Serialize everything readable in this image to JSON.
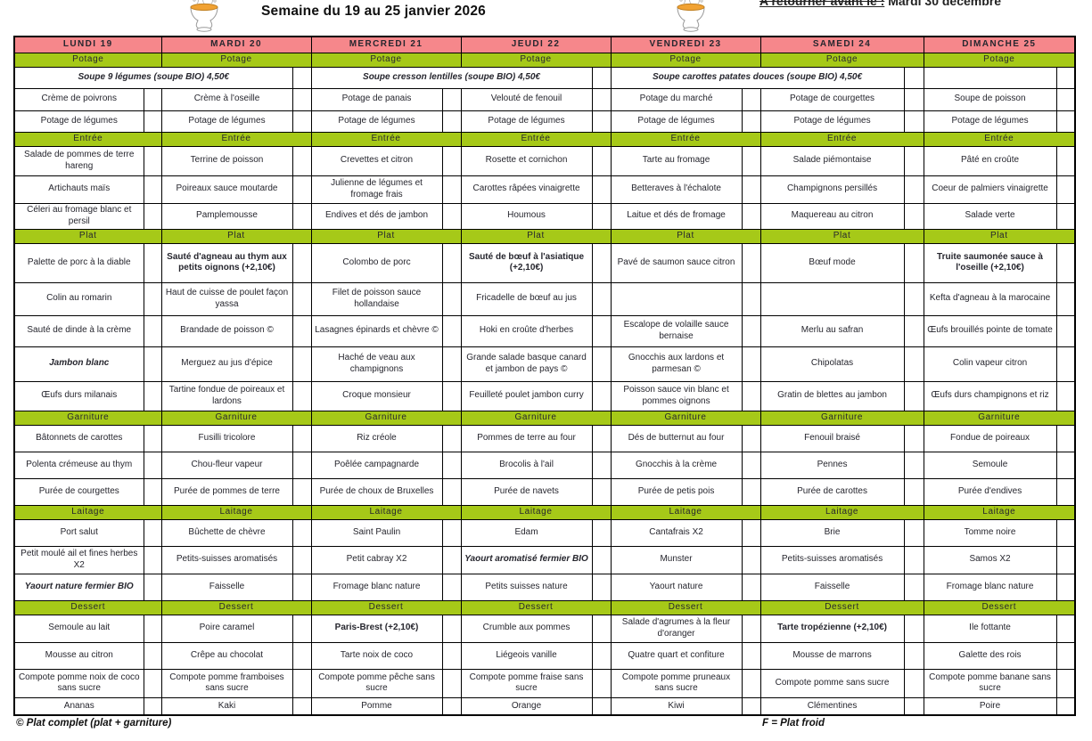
{
  "header": {
    "title": "Semaine du 19 au 25 janvier 2026",
    "return_note": "A retourner avant le :",
    "return_date": "Mardi 30 décembre"
  },
  "colors": {
    "day_header_bg": "#f6878b",
    "section_header_bg": "#a6c918",
    "grid_border": "#000000",
    "soup_icon_fill": "#f1a233"
  },
  "icons": [
    "soup-tureen-icon",
    "soup-tureen-icon"
  ],
  "days": [
    "LUNDI 19",
    "MARDI 20",
    "MERCREDI 21",
    "JEUDI 22",
    "VENDREDI 23",
    "SAMEDI 24",
    "DIMANCHE 25"
  ],
  "soup_bio_row": [
    {
      "label": "Soupe 9 légumes (soupe BIO) 4,50€",
      "days": 2
    },
    {
      "label": "Soupe cresson lentilles (soupe BIO) 4,50€",
      "days": 2
    },
    {
      "label": "Soupe carottes patates douces (soupe BIO) 4,50€",
      "days": 2
    },
    {
      "label": "",
      "days": 1
    }
  ],
  "sections": [
    {
      "key": "potage",
      "label": "Potage",
      "rows": [
        [
          "Crème de poivrons",
          "Crème à l'oseille",
          "Potage de panais",
          "Velouté de fenouil",
          "Potage du marché",
          "Potage de courgettes",
          "Soupe de poisson"
        ],
        [
          "Potage de légumes",
          "Potage de légumes",
          "Potage de légumes",
          "Potage de légumes",
          "Potage de légumes",
          "Potage de légumes",
          "Potage de légumes"
        ]
      ]
    },
    {
      "key": "entree",
      "label": "Entrée",
      "rows": [
        [
          "Salade de pommes de terre hareng",
          "Terrine de poisson",
          "Crevettes et citron",
          "Rosette et cornichon",
          "Tarte au fromage",
          "Salade piémontaise",
          "Pâté en croûte"
        ],
        [
          "Artichauts maïs",
          "Poireaux sauce moutarde",
          "Julienne de légumes et fromage frais",
          "Carottes râpées vinaigrette",
          "Betteraves à l'échalote",
          "Champignons persillés",
          "Coeur de palmiers vinaigrette"
        ],
        [
          "Céleri au fromage blanc et persil",
          "Pamplemousse",
          "Endives et dés de jambon",
          "Houmous",
          "Laitue et dés de fromage",
          "Maquereau au citron",
          "Salade verte"
        ]
      ]
    },
    {
      "key": "plat",
      "label": "Plat",
      "rows": [
        [
          "Palette de porc à la diable",
          {
            "text": "Sauté d'agneau au thym aux petits oignons (+2,10€)",
            "style": "bold"
          },
          "Colombo de porc",
          {
            "text": "Sauté de bœuf à l'asiatique (+2,10€)",
            "style": "bold"
          },
          "Pavé de saumon sauce citron",
          "Bœuf mode",
          {
            "text": "Truite saumonée sauce à l'oseille (+2,10€)",
            "style": "bold"
          }
        ],
        [
          "Colin au romarin",
          "Haut de cuisse de poulet façon yassa",
          "Filet de poisson sauce hollandaise",
          "Fricadelle de bœuf au jus",
          "",
          "",
          "Kefta d'agneau à la marocaine"
        ],
        [
          "Sauté de dinde à la crème",
          "Brandade de poisson ©",
          "Lasagnes épinards et chèvre ©",
          "Hoki en croûte d'herbes",
          "Escalope de volaille sauce bernaise",
          "Merlu au safran",
          "Œufs brouillés pointe de tomate"
        ],
        [
          {
            "text": "Jambon blanc",
            "style": "bold-italic"
          },
          "Merguez au jus d'épice",
          "Haché de veau aux champignons",
          "Grande salade basque canard et jambon de pays ©",
          "Gnocchis aux lardons et parmesan ©",
          "Chipolatas",
          "Colin vapeur citron"
        ],
        [
          "Œufs durs milanais",
          "Tartine fondue de poireaux et lardons",
          "Croque monsieur",
          "Feuilleté poulet jambon curry",
          "Poisson sauce vin blanc et pommes oignons",
          "Gratin de blettes au jambon",
          "Œufs durs champignons et riz"
        ]
      ]
    },
    {
      "key": "garniture",
      "label": "Garniture",
      "rows": [
        [
          "Bâtonnets de carottes",
          "Fusilli tricolore",
          "Riz créole",
          "Pommes de terre au four",
          "Dés de butternut au four",
          "Fenouil braisé",
          "Fondue de poireaux"
        ],
        [
          "Polenta crémeuse au thym",
          "Chou-fleur vapeur",
          "Poêlée campagnarde",
          "Brocolis à l'ail",
          "Gnocchis à la crème",
          "Pennes",
          "Semoule"
        ],
        [
          "Purée de courgettes",
          "Purée de pommes de terre",
          "Purée de choux de Bruxelles",
          "Purée de navets",
          "Purée de petis pois",
          "Purée de carottes",
          "Purée d'endives"
        ]
      ]
    },
    {
      "key": "laitage",
      "label": "Laitage",
      "rows": [
        [
          "Port salut",
          "Bûchette de chèvre",
          "Saint Paulin",
          "Edam",
          "Cantafrais X2",
          "Brie",
          "Tomme noire"
        ],
        [
          "Petit moulé ail et fines herbes X2",
          "Petits-suisses aromatisés",
          "Petit cabray X2",
          {
            "text": "Yaourt aromatisé fermier BIO",
            "style": "bold-italic"
          },
          "Munster",
          "Petits-suisses aromatisés",
          "Samos X2"
        ],
        [
          {
            "text": "Yaourt nature fermier BIO",
            "style": "bold-italic"
          },
          "Faisselle",
          "Fromage blanc nature",
          "Petits suisses nature",
          "Yaourt nature",
          "Faisselle",
          "Fromage blanc nature"
        ]
      ]
    },
    {
      "key": "dessert",
      "label": "Dessert",
      "rows": [
        [
          "Semoule au lait",
          "Poire caramel",
          {
            "text": "Paris-Brest (+2,10€)",
            "style": "bold"
          },
          "Crumble aux pommes",
          "Salade d'agrumes à la fleur d'oranger",
          {
            "text": "Tarte tropézienne (+2,10€)",
            "style": "bold"
          },
          "Ile fottante"
        ],
        [
          "Mousse au citron",
          "Crêpe au chocolat",
          "Tarte noix de coco",
          "Liégeois vanille",
          "Quatre quart et confiture",
          "Mousse de marrons",
          "Galette des rois"
        ],
        [
          "Compote pomme noix de coco sans sucre",
          "Compote pomme framboises sans sucre",
          "Compote pomme pêche sans sucre",
          "Compote pomme fraise sans sucre",
          "Compote pomme pruneaux sans sucre",
          "Compote pomme sans sucre",
          "Compote pomme banane sans sucre"
        ],
        [
          "Ananas",
          "Kaki",
          "Pomme",
          "Orange",
          "Kiwi",
          "Clémentines",
          "Poire"
        ]
      ]
    }
  ],
  "footer": {
    "left": "© Plat complet (plat + garniture)",
    "right": "F = Plat froid"
  }
}
